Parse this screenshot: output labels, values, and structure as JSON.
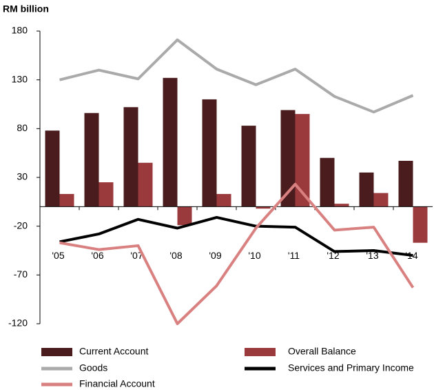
{
  "chart_data": {
    "type": "bar",
    "y_axis_label": "RM billion",
    "categories": [
      "'05",
      "'06",
      "'07",
      "'08",
      "'09",
      "'10",
      "'11",
      "'12",
      "'13",
      "'14"
    ],
    "series": [
      {
        "name": "Current Account",
        "type": "bar",
        "color": "#4a1c1e",
        "values": [
          78,
          96,
          102,
          132,
          110,
          83,
          99,
          50,
          35,
          47
        ]
      },
      {
        "name": "Overall Balance",
        "type": "bar",
        "color": "#9b3a3d",
        "values": [
          13,
          25,
          45,
          -19,
          13,
          -2,
          95,
          3,
          14,
          -37
        ]
      },
      {
        "name": "Goods",
        "type": "line",
        "color": "#aaaaaa",
        "values": [
          130,
          140,
          131,
          171,
          141,
          125,
          141,
          113,
          97,
          114
        ]
      },
      {
        "name": "Services and Primary Income",
        "type": "line",
        "color": "#000000",
        "values": [
          -36,
          -28,
          -13,
          -22,
          -11,
          -20,
          -21,
          -46,
          -45,
          -50
        ]
      },
      {
        "name": "Financial Account",
        "type": "line",
        "color": "#d98080",
        "values": [
          -37,
          -44,
          -40,
          -120,
          -81,
          -22,
          23,
          -24,
          -21,
          -83
        ]
      }
    ],
    "ylim": [
      -120,
      180
    ],
    "yticks": [
      -120,
      -70,
      -20,
      30,
      80,
      130,
      180
    ]
  }
}
